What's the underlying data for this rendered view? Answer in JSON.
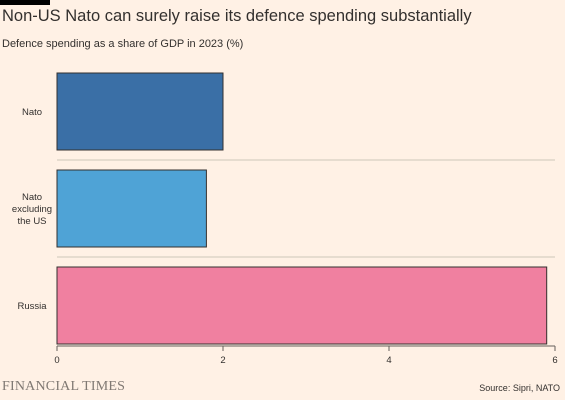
{
  "title": "Non-US Nato can surely raise its defence spending substantially",
  "subtitle": "Defence spending as a share of GDP in 2023 (%)",
  "brand": "FINANCIAL TIMES",
  "source": "Source: Sipri, NATO",
  "chart_data": {
    "type": "bar",
    "orientation": "horizontal",
    "categories": [
      [
        "Nato"
      ],
      [
        "Nato",
        "excluding",
        "the US"
      ],
      [
        "Russia"
      ]
    ],
    "values": [
      2.0,
      1.8,
      5.9
    ],
    "colors": [
      "#3A6FA6",
      "#4FA3D6",
      "#F080A0"
    ],
    "xlim": [
      0,
      6
    ],
    "xticks": [
      0,
      2,
      4,
      6
    ],
    "xlabel": "",
    "ylabel": "",
    "grid": false
  }
}
